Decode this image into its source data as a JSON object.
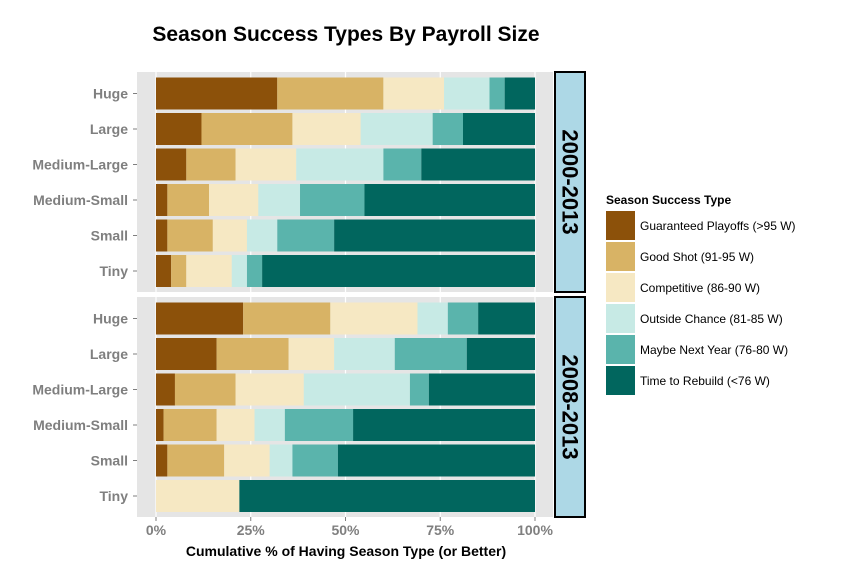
{
  "chart_data": {
    "type": "bar",
    "orientation": "horizontal",
    "stacked": true,
    "title": "Season Success Types By Payroll Size",
    "xlabel": "Cumulative % of Having Season Type (or Better)",
    "ylabel": "",
    "xlim": [
      0,
      100
    ],
    "xticks": [
      "0%",
      "25%",
      "50%",
      "75%",
      "100%"
    ],
    "grid": true,
    "legend_position": "right",
    "legend_title": "Season Success Type",
    "categories": [
      "Huge",
      "Large",
      "Medium-Large",
      "Medium-Small",
      "Small",
      "Tiny"
    ],
    "series": [
      {
        "name": "Guaranteed Playoffs (>95 W)",
        "color": "#8c510a"
      },
      {
        "name": "Good Shot (91-95 W)",
        "color": "#d8b365"
      },
      {
        "name": "Competitive (86-90 W)",
        "color": "#f6e8c3"
      },
      {
        "name": "Outside Chance (81-85 W)",
        "color": "#c7eae5"
      },
      {
        "name": "Maybe Next Year (76-80 W)",
        "color": "#5ab4ac"
      },
      {
        "name": "Time to Rebuild (<76 W)",
        "color": "#01665e"
      }
    ],
    "panels": [
      {
        "label": "2000-2013",
        "values": {
          "Huge": [
            32,
            28,
            16,
            12,
            4,
            8
          ],
          "Large": [
            12,
            24,
            18,
            19,
            8,
            19
          ],
          "Medium-Large": [
            8,
            13,
            16,
            23,
            10,
            30
          ],
          "Medium-Small": [
            3,
            11,
            13,
            11,
            17,
            45
          ],
          "Small": [
            3,
            12,
            9,
            8,
            15,
            53
          ],
          "Tiny": [
            4,
            4,
            12,
            4,
            4,
            72
          ]
        }
      },
      {
        "label": "2008-2013",
        "values": {
          "Huge": [
            23,
            23,
            23,
            8,
            8,
            15
          ],
          "Large": [
            16,
            19,
            12,
            16,
            19,
            18
          ],
          "Medium-Large": [
            5,
            16,
            18,
            28,
            5,
            28
          ],
          "Medium-Small": [
            2,
            14,
            10,
            8,
            18,
            48
          ],
          "Small": [
            3,
            15,
            12,
            6,
            12,
            52
          ],
          "Tiny": [
            0,
            0,
            22,
            0,
            0,
            78
          ]
        }
      }
    ]
  }
}
